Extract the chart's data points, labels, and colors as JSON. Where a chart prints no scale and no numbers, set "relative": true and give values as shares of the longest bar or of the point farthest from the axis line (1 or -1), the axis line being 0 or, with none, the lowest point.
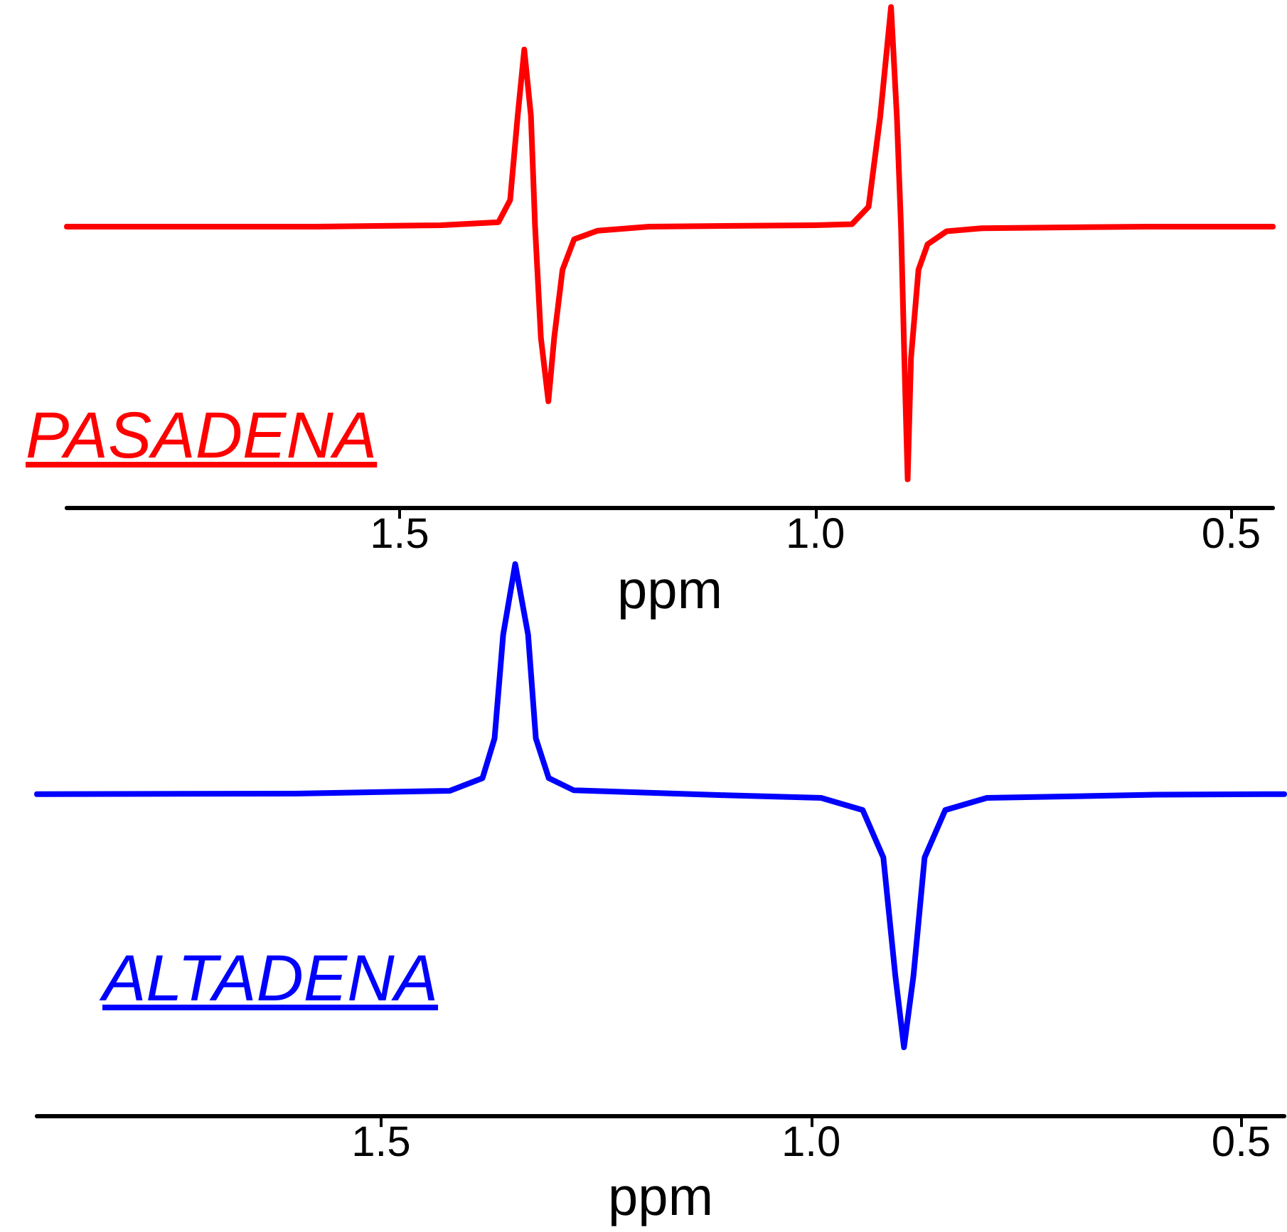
{
  "chart_data": [
    {
      "type": "line",
      "relative": true,
      "xlabel": "ppm",
      "xlim": [
        1.9,
        0.45
      ],
      "marker": "none",
      "legend": false,
      "grid": false,
      "xticks": [
        {
          "value": 1.5,
          "label": "1.5"
        },
        {
          "value": 1.0,
          "label": "1.0"
        },
        {
          "value": 0.5,
          "label": "0.5"
        }
      ],
      "series": [
        {
          "name": "PASADENA",
          "color": "#ff0000",
          "x": [
            1.9,
            1.6,
            1.45,
            1.381,
            1.367,
            1.358,
            1.35,
            1.342,
            1.337,
            1.33,
            1.321,
            1.314,
            1.304,
            1.29,
            1.262,
            1.2,
            1.0,
            0.956,
            0.936,
            0.922,
            0.909,
            0.902,
            0.897,
            0.893,
            0.889,
            0.885,
            0.876,
            0.865,
            0.842,
            0.8,
            0.6,
            0.45
          ],
          "values": [
            0.561,
            0.561,
            0.564,
            0.57,
            0.614,
            0.781,
            0.915,
            0.783,
            0.561,
            0.339,
            0.212,
            0.339,
            0.475,
            0.536,
            0.553,
            0.561,
            0.564,
            0.566,
            0.601,
            0.781,
            1,
            0.781,
            0.561,
            0.298,
            0.056,
            0.298,
            0.475,
            0.526,
            0.552,
            0.558,
            0.561,
            0.561
          ]
        }
      ]
    },
    {
      "type": "line",
      "relative": true,
      "xlabel": "ppm",
      "xlim": [
        1.9,
        0.45
      ],
      "marker": "none",
      "legend": false,
      "grid": false,
      "xticks": [
        {
          "value": 1.5,
          "label": "1.5"
        },
        {
          "value": 1.0,
          "label": "1.0"
        },
        {
          "value": 0.5,
          "label": "0.5"
        }
      ],
      "series": [
        {
          "name": "ALTADENA",
          "color": "#0000ff",
          "x": [
            1.9,
            1.6,
            1.42,
            1.382,
            1.368,
            1.358,
            1.344,
            1.329,
            1.32,
            1.305,
            1.276,
            1.1,
            0.988,
            0.94,
            0.916,
            0.902,
            0.892,
            0.881,
            0.868,
            0.844,
            0.796,
            0.6,
            0.45
          ],
          "values": [
            0.583,
            0.584,
            0.589,
            0.612,
            0.684,
            0.872,
            1,
            0.872,
            0.684,
            0.612,
            0.59,
            0.581,
            0.576,
            0.554,
            0.468,
            0.253,
            0.124,
            0.253,
            0.468,
            0.554,
            0.576,
            0.582,
            0.583
          ]
        }
      ]
    }
  ]
}
